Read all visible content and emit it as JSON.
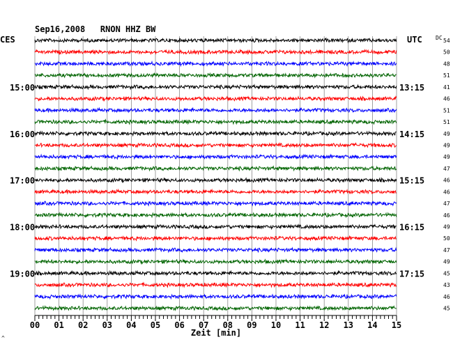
{
  "header": {
    "title": "Sep16,2008   RNON HHZ BW",
    "left_zone": "CES",
    "right_zone": "UTC",
    "dc_label": "DC"
  },
  "footer": {
    "xlabel": "Zeit [min]",
    "corner_mark": "^"
  },
  "chart_data": {
    "type": "line",
    "title": "Sep16,2008   RNON HHZ BW",
    "xlabel": "Zeit [min]",
    "xlim": [
      0,
      15
    ],
    "x_ticks": [
      "00",
      "01",
      "02",
      "03",
      "04",
      "05",
      "06",
      "07",
      "08",
      "09",
      "10",
      "11",
      "12",
      "13",
      "14",
      "15"
    ],
    "trace_colors": [
      "#000000",
      "#ff0000",
      "#0000ff",
      "#006400"
    ],
    "trace_count": 24,
    "trace_minutes": 15,
    "left_time_labels": [
      {
        "trace": 4,
        "label": "15:00"
      },
      {
        "trace": 8,
        "label": "16:00"
      },
      {
        "trace": 12,
        "label": "17:00"
      },
      {
        "trace": 16,
        "label": "18:00"
      },
      {
        "trace": 20,
        "label": "19:00"
      }
    ],
    "right_time_labels": [
      {
        "trace": 4,
        "label": "13:15"
      },
      {
        "trace": 8,
        "label": "14:15"
      },
      {
        "trace": 12,
        "label": "15:15"
      },
      {
        "trace": 16,
        "label": "16:15"
      },
      {
        "trace": 20,
        "label": "17:15"
      }
    ],
    "dc_offsets": [
      "54",
      "50",
      "48",
      "51",
      "41",
      "46",
      "51",
      "51",
      "49",
      "49",
      "49",
      "47",
      "46",
      "46",
      "47",
      "46",
      "49",
      "50",
      "47",
      "49",
      "45",
      "43",
      "46",
      "45"
    ],
    "grid": true
  }
}
